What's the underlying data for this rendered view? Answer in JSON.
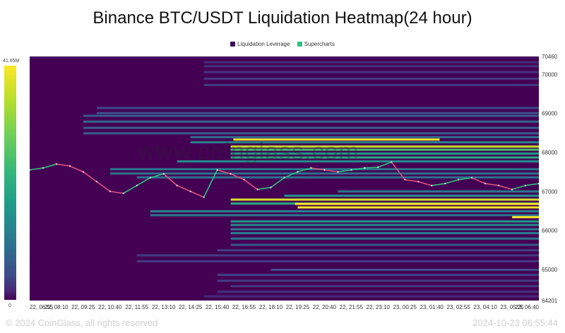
{
  "chart_data": {
    "type": "heatmap",
    "title": "Binance BTC/USDT Liquidation Heatmap(24 hour)",
    "legend": [
      {
        "name": "Liquidation Leverage",
        "color": "#3b0f5e"
      },
      {
        "name": "Supercharts",
        "color": "#2ec27e"
      }
    ],
    "colorbar": {
      "max_label": "41.65M",
      "min_label": "0",
      "max": 41.65,
      "min": 0
    },
    "x_tick_labels": [
      "22, 06:55",
      "22, 08:10",
      "22, 09:25",
      "22, 10:40",
      "22, 11:55",
      "22, 13:10",
      "22, 14:25",
      "22, 15:40",
      "22, 16:55",
      "22, 18:10",
      "22, 19:25",
      "22, 20:40",
      "22, 21:55",
      "22, 23:10",
      "23, 00:25",
      "23, 01:40",
      "23, 02:55",
      "23, 04:10",
      "23, 05:25",
      "23, 06:40"
    ],
    "y_tick_labels": [
      "70460",
      "70000",
      "69000",
      "68000",
      "67000",
      "66000",
      "65000",
      "64201"
    ],
    "y_ticks": [
      70460,
      70000,
      69000,
      68000,
      67000,
      66000,
      65000,
      64201
    ],
    "ylim": [
      64201,
      70460
    ],
    "x_range_index": [
      0,
      19
    ],
    "bands": [
      {
        "price": 70420,
        "start": 0,
        "intensity": 0.05
      },
      {
        "price": 70300,
        "start": 6.5,
        "intensity": 0.12
      },
      {
        "price": 70200,
        "start": 6.5,
        "intensity": 0.14
      },
      {
        "price": 70050,
        "start": 6.5,
        "intensity": 0.15
      },
      {
        "price": 69880,
        "start": 6.5,
        "intensity": 0.16
      },
      {
        "price": 69720,
        "start": 6.5,
        "intensity": 0.18
      },
      {
        "price": 69130,
        "start": 2.5,
        "intensity": 0.22
      },
      {
        "price": 69000,
        "start": 2.5,
        "intensity": 0.24
      },
      {
        "price": 68930,
        "start": 2.0,
        "intensity": 0.28
      },
      {
        "price": 68780,
        "start": 2.0,
        "intensity": 0.33
      },
      {
        "price": 68620,
        "start": 2.0,
        "intensity": 0.3
      },
      {
        "price": 68480,
        "start": 2.0,
        "intensity": 0.3
      },
      {
        "price": 68380,
        "start": 6.0,
        "intensity": 0.35
      },
      {
        "price": 68250,
        "start": 6.0,
        "intensity": 0.45
      },
      {
        "price": 68140,
        "start": 7.5,
        "intensity": 0.92
      },
      {
        "price": 68060,
        "start": 7.5,
        "intensity": 0.7
      },
      {
        "price": 67960,
        "start": 7.5,
        "intensity": 0.55
      },
      {
        "price": 67860,
        "start": 7.5,
        "intensity": 0.6
      },
      {
        "price": 67760,
        "start": 5.5,
        "intensity": 0.5
      },
      {
        "price": 67560,
        "start": 3.0,
        "intensity": 0.4
      },
      {
        "price": 67450,
        "start": 3.0,
        "intensity": 0.38
      },
      {
        "price": 67350,
        "start": 4.0,
        "intensity": 0.36
      },
      {
        "price": 66990,
        "start": 11.5,
        "intensity": 0.4
      },
      {
        "price": 66880,
        "start": 9.5,
        "intensity": 0.5
      },
      {
        "price": 66780,
        "start": 7.5,
        "intensity": 0.94
      },
      {
        "price": 66680,
        "start": 7.5,
        "intensity": 0.6
      },
      {
        "price": 66580,
        "start": 10.0,
        "intensity": 1.0
      },
      {
        "price": 66480,
        "start": 4.5,
        "intensity": 0.45
      },
      {
        "price": 66380,
        "start": 4.5,
        "intensity": 0.4
      },
      {
        "price": 66220,
        "start": 7.5,
        "intensity": 0.55
      },
      {
        "price": 66130,
        "start": 7.5,
        "intensity": 0.48
      },
      {
        "price": 66020,
        "start": 7.5,
        "intensity": 0.42
      },
      {
        "price": 65920,
        "start": 7.5,
        "intensity": 0.42
      },
      {
        "price": 65780,
        "start": 7.5,
        "intensity": 0.38
      },
      {
        "price": 65620,
        "start": 7.5,
        "intensity": 0.28
      },
      {
        "price": 65480,
        "start": 7.0,
        "intensity": 0.2
      },
      {
        "price": 65350,
        "start": 4.0,
        "intensity": 0.18
      },
      {
        "price": 65200,
        "start": 4.0,
        "intensity": 0.18
      },
      {
        "price": 64980,
        "start": 9.0,
        "intensity": 0.24
      },
      {
        "price": 64850,
        "start": 7.0,
        "intensity": 0.2
      },
      {
        "price": 64700,
        "start": 7.0,
        "intensity": 0.18
      },
      {
        "price": 64560,
        "start": 7.5,
        "intensity": 0.16
      },
      {
        "price": 64420,
        "start": 7.0,
        "intensity": 0.14
      },
      {
        "price": 64300,
        "start": 6.5,
        "intensity": 0.12
      }
    ],
    "segments": [
      {
        "price": 68320,
        "start": 7.6,
        "end": 15.3,
        "intensity": 1.0
      },
      {
        "price": 66670,
        "start": 9.9,
        "end": 19.0,
        "intensity": 1.0
      },
      {
        "price": 66330,
        "start": 18.0,
        "end": 19.0,
        "intensity": 1.0
      }
    ],
    "price_series": {
      "x": [
        0,
        0.5,
        1,
        1.5,
        2,
        2.5,
        3,
        3.5,
        4,
        4.5,
        5,
        5.5,
        6,
        6.5,
        7,
        7.5,
        8,
        8.5,
        9,
        9.5,
        10,
        10.5,
        11,
        11.5,
        12,
        12.5,
        13,
        13.5,
        14,
        14.5,
        15,
        15.5,
        16,
        16.5,
        17,
        17.5,
        18,
        18.5,
        19
      ],
      "y": [
        67550,
        67600,
        67700,
        67650,
        67500,
        67250,
        67000,
        66950,
        67150,
        67350,
        67450,
        67150,
        67000,
        66850,
        67550,
        67450,
        67300,
        67050,
        67100,
        67350,
        67500,
        67600,
        67550,
        67500,
        67550,
        67600,
        67620,
        67750,
        67300,
        67250,
        67150,
        67200,
        67300,
        67350,
        67200,
        67150,
        67050,
        67150,
        67200
      ]
    },
    "colors": {
      "background": "#440154",
      "line_up": "#2ec27e",
      "line_down": "#e0507a"
    }
  },
  "watermark": "www.coinglass.com",
  "footer": {
    "left": "© 2024 CoinGlass, all rights reserved",
    "right": "2024-10-23 06:55:44"
  }
}
